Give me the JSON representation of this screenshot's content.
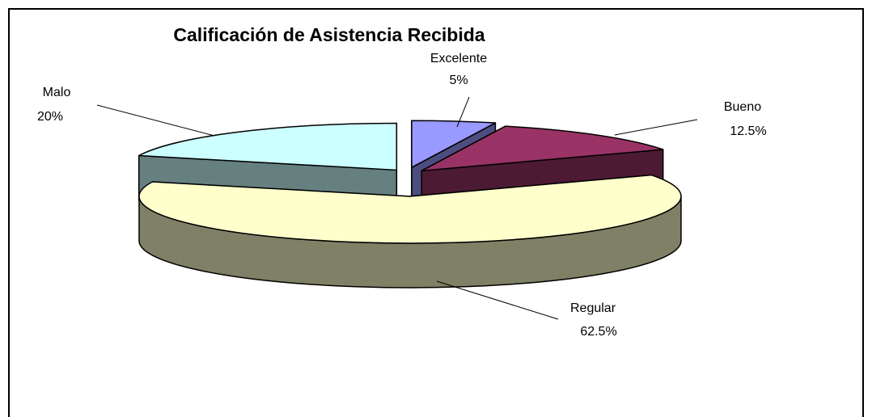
{
  "chart_data": {
    "type": "pie",
    "title": "Calificación de Asistencia Recibida",
    "categories": [
      "Excelente",
      "Bueno",
      "Regular",
      "Malo"
    ],
    "values": [
      5,
      12.5,
      62.5,
      20
    ],
    "value_labels": [
      "5%",
      "12.5%",
      "62.5%",
      "20%"
    ],
    "colors": [
      "#9999ff",
      "#993366",
      "#ffffcc",
      "#ccffff"
    ]
  }
}
